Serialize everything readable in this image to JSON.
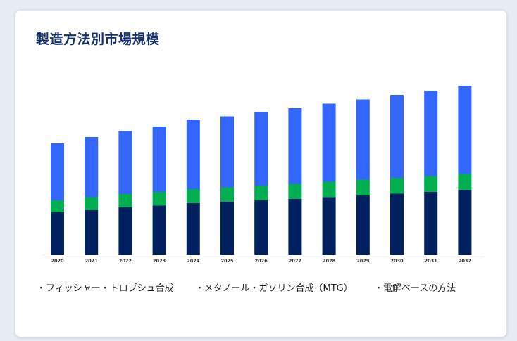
{
  "chart_data": {
    "type": "bar",
    "stacked": true,
    "title": "製造方法別市場規模",
    "categories": [
      "2020",
      "2021",
      "2022",
      "2023",
      "2024",
      "2025",
      "2026",
      "2027",
      "2028",
      "2029",
      "2030",
      "2031",
      "2032"
    ],
    "series": [
      {
        "name": "フィッシャー・トロプシュ合成",
        "color": "#00205f",
        "values": [
          60,
          63.5,
          67,
          69.5,
          73,
          75,
          77,
          79,
          81.5,
          84,
          86.5,
          89,
          92
        ]
      },
      {
        "name": "メタノール・ガソリン合成（MTG）",
        "color": "#00b050",
        "values": [
          17,
          18,
          19,
          19.5,
          20,
          20.5,
          21,
          21.5,
          22,
          22.5,
          22.5,
          22.5,
          22.5
        ]
      },
      {
        "name": "電解ベースの方法",
        "color": "#3366ff",
        "values": [
          81,
          85.5,
          89.5,
          93,
          99,
          101,
          104.5,
          107.5,
          111,
          114,
          118,
          121.5,
          125.5
        ]
      }
    ],
    "ylim": [
      0,
      250
    ],
    "grid": false,
    "legend_position": "bottom"
  }
}
